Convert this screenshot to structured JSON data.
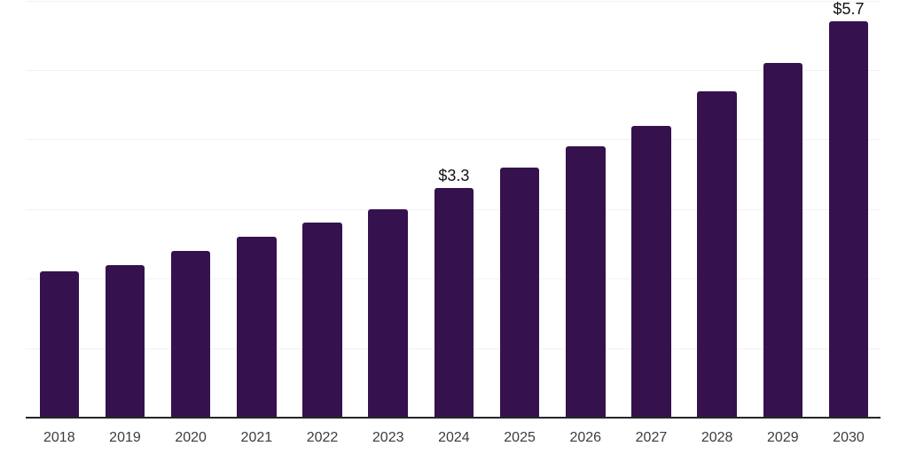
{
  "chart_data": {
    "type": "bar",
    "title": "",
    "xlabel": "",
    "ylabel": "",
    "categories": [
      "2018",
      "2019",
      "2020",
      "2021",
      "2022",
      "2023",
      "2024",
      "2025",
      "2026",
      "2027",
      "2028",
      "2029",
      "2030"
    ],
    "values": [
      2.1,
      2.2,
      2.4,
      2.6,
      2.8,
      3.0,
      3.3,
      3.6,
      3.9,
      4.2,
      4.7,
      5.1,
      5.7
    ],
    "data_labels": [
      null,
      null,
      null,
      null,
      null,
      null,
      "$3.3",
      null,
      null,
      null,
      null,
      null,
      "$5.7"
    ],
    "ylim": [
      0,
      6
    ],
    "gridline_values": [
      1,
      2,
      3,
      4,
      5,
      6
    ],
    "grid": "horizontal-only",
    "legend": "none",
    "colors": {
      "bar": "#35124d",
      "background": "#ffffff",
      "axis_line": "#262626",
      "gridline": "#f2f2f2",
      "tick_label": "#3c3c3c",
      "data_label": "#141414"
    }
  }
}
